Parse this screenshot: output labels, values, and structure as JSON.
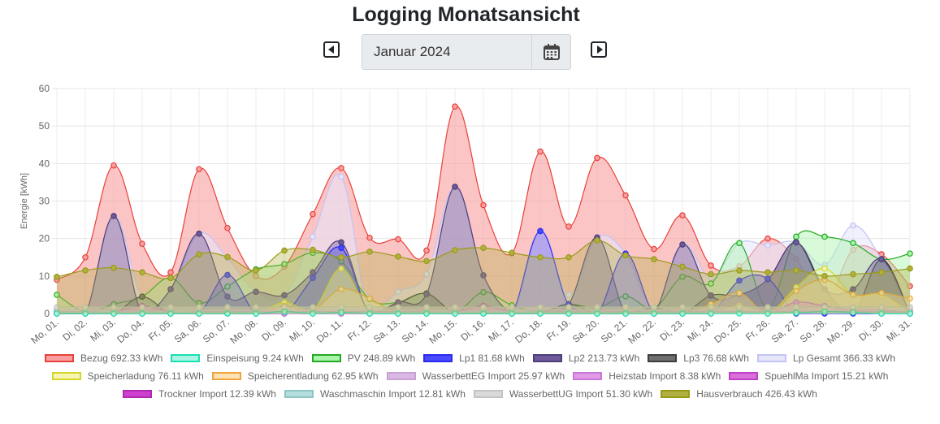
{
  "header": {
    "title": "Logging Monatsansicht"
  },
  "date_picker": {
    "value": "Januar 2024",
    "prev_icon": "chevron-left-icon",
    "next_icon": "chevron-right-icon",
    "calendar_icon": "calendar-icon"
  },
  "chart_data": {
    "type": "area",
    "ylabel": "Energie [kWh]",
    "xlabel": "",
    "ylim": [
      0,
      60
    ],
    "yticks": [
      0,
      10,
      20,
      30,
      40,
      50,
      60
    ],
    "grid": true,
    "legend_position": "bottom",
    "categories": [
      "Mo, 01.",
      "Di, 02.",
      "Mi, 03.",
      "Do, 04.",
      "Fr, 05.",
      "Sa, 06.",
      "So, 07.",
      "Mo, 08.",
      "Di, 09.",
      "Mi, 10.",
      "Do, 11.",
      "Fr, 12.",
      "Sa, 13.",
      "So, 14.",
      "Mo, 15.",
      "Di, 16.",
      "Mi, 17.",
      "Do, 18.",
      "Fr, 19.",
      "Sa, 20.",
      "So, 21.",
      "Mo, 22.",
      "Di, 23.",
      "Mi, 24.",
      "Do, 25.",
      "Fr, 26.",
      "Sa, 27.",
      "So, 28.",
      "Mo, 29.",
      "Di, 30.",
      "Mi, 31."
    ],
    "series": [
      {
        "name": "Bezug",
        "label": "Bezug 692.33 kWh",
        "stroke": "#e8413c",
        "fill": "#f99f9f",
        "values": [
          9,
          15,
          39.5,
          18.6,
          11,
          38.5,
          22.8,
          10,
          12.5,
          26.5,
          38.8,
          20.2,
          19.8,
          16.8,
          55.2,
          28.9,
          16.1,
          43.2,
          23.2,
          41.5,
          31.5,
          17.2,
          26.2,
          12.8,
          12.6,
          20,
          14.5,
          3.2,
          17,
          15.8,
          7.3
        ]
      },
      {
        "name": "Einspeisung",
        "label": "Einspeisung 9.24 kWh",
        "stroke": "#1adfb0",
        "fill": "#a8f5e6",
        "values": [
          0,
          0,
          0,
          0,
          0,
          0,
          0,
          0,
          0.5,
          0,
          0.3,
          0,
          0,
          0,
          0,
          0,
          0,
          0,
          0,
          0,
          0,
          0,
          0,
          0,
          0,
          0,
          0.2,
          0.5,
          0.3,
          0,
          0
        ]
      },
      {
        "name": "PV",
        "label": "PV 248.89 kWh",
        "stroke": "#22a922",
        "fill": "#aaf5aa",
        "values": [
          5,
          0.5,
          2.5,
          4.5,
          9.5,
          2.8,
          7.2,
          11.8,
          13.2,
          16.2,
          13.9,
          3.8,
          3,
          5.4,
          0.5,
          5.7,
          2.2,
          0.5,
          2.5,
          1.5,
          4.6,
          1.5,
          9.8,
          8,
          18.8,
          1.5,
          20.5,
          20.5,
          18.8,
          14.5,
          16
        ]
      },
      {
        "name": "Lp1",
        "label": "Lp1 81.68 kWh",
        "stroke": "#2a2af0",
        "fill": "#4a4aff",
        "values": [
          0,
          0,
          0,
          0,
          0,
          0,
          10.3,
          0,
          0,
          9.5,
          17.5,
          0,
          0,
          0,
          0,
          0,
          0,
          22,
          2.3,
          0,
          16,
          0,
          0,
          0,
          8.8,
          9.3,
          0,
          0,
          0,
          0,
          0
        ]
      },
      {
        "name": "Lp2",
        "label": "Lp2 213.73 kWh",
        "stroke": "#4e3e7a",
        "fill": "#6e5a9a",
        "values": [
          0,
          0,
          26,
          0,
          6.5,
          21.3,
          4.5,
          5.8,
          4.9,
          11,
          19,
          0,
          3,
          5.2,
          33.8,
          10.2,
          0,
          0,
          2.5,
          20.3,
          0,
          0,
          18.4,
          4.8,
          5,
          9.1,
          19,
          6.5,
          6.5,
          14.5,
          0
        ]
      },
      {
        "name": "Lp3",
        "label": "Lp3 76.68 kWh",
        "stroke": "#3d3d3d",
        "fill": "#6e6e6e",
        "values": [
          0,
          0,
          0,
          4.5,
          0,
          0,
          0,
          0,
          0,
          0,
          0,
          0,
          2.8,
          5.3,
          0,
          0,
          0,
          0,
          2.5,
          0,
          0,
          1.5,
          0,
          4.8,
          5,
          9.1,
          19,
          6.5,
          0,
          14.5,
          0
        ]
      },
      {
        "name": "Lp Gesamt",
        "label": "Lp Gesamt 366.33 kWh",
        "stroke": "#c3c3f5",
        "fill": "#e6e6fb",
        "values": [
          0,
          0,
          26,
          4.5,
          6.5,
          21.3,
          14.8,
          5.8,
          4.9,
          20.5,
          36.5,
          0,
          5.8,
          10.5,
          33.8,
          10.2,
          0,
          22,
          5,
          20.3,
          16,
          1.5,
          18.4,
          9.6,
          18.8,
          18.2,
          19,
          13,
          23.5,
          14.5,
          0
        ]
      },
      {
        "name": "Speicherladung",
        "label": "Speicherladung 76.11 kWh",
        "stroke": "#d5d52a",
        "fill": "#f5f5b4",
        "values": [
          0,
          0,
          0,
          0,
          0,
          0,
          0,
          0,
          3,
          1,
          12,
          0,
          0,
          0,
          0,
          0,
          0,
          0,
          0,
          0,
          0,
          0,
          0,
          0,
          2,
          0,
          7,
          12,
          5,
          5,
          0
        ]
      },
      {
        "name": "Speicherentladung",
        "label": "Speicherentladung 62.95 kWh",
        "stroke": "#f0a53c",
        "fill": "#fde2b8",
        "values": [
          0,
          0,
          0,
          0,
          0,
          0,
          0,
          0,
          2,
          1,
          6.5,
          4,
          0,
          0,
          0,
          0,
          0,
          0,
          0,
          0,
          0,
          0,
          0,
          2.5,
          5.5,
          0,
          6,
          9,
          5,
          5.5,
          4
        ]
      },
      {
        "name": "WasserbettEG Import",
        "label": "WasserbettEG Import 25.97 kWh",
        "stroke": "#c8a2d4",
        "fill": "#dcb8e4",
        "values": [
          1,
          1,
          1,
          1,
          1,
          1,
          1,
          1,
          1,
          1,
          1,
          1,
          1,
          1,
          1,
          1,
          1,
          1,
          1,
          1,
          1,
          1,
          1,
          1,
          1,
          1,
          1,
          1,
          1,
          1,
          1
        ]
      },
      {
        "name": "Heizstab Import",
        "label": "Heizstab Import 8.38 kWh",
        "stroke": "#c878d8",
        "fill": "#e09ae6",
        "values": [
          0,
          0,
          0,
          0,
          0,
          0,
          0,
          0,
          0,
          0,
          0,
          0,
          0,
          0,
          0,
          0,
          0,
          0,
          0,
          0,
          0,
          0,
          0,
          0,
          0.5,
          0,
          3,
          2,
          1,
          1,
          0
        ]
      },
      {
        "name": "SpuehlMa Import",
        "label": "SpuehlMa Import 15.21 kWh",
        "stroke": "#c040c8",
        "fill": "#da70da",
        "values": [
          0.5,
          0.5,
          0.5,
          2,
          0.5,
          0.5,
          0.5,
          0.5,
          0.5,
          0.5,
          0.5,
          0.5,
          0.5,
          0.5,
          0.5,
          2,
          0.5,
          0.5,
          0.5,
          0.5,
          0.5,
          0.5,
          0.5,
          0.5,
          0.5,
          0.5,
          0.5,
          0.5,
          0.5,
          0.5,
          0.5
        ]
      },
      {
        "name": "Trockner Import",
        "label": "Trockner Import 12.39 kWh",
        "stroke": "#b02ab0",
        "fill": "#d040d0",
        "values": [
          0.4,
          0.4,
          0.4,
          0.4,
          0.4,
          0.4,
          0.4,
          0.4,
          0.4,
          0.4,
          0.4,
          0.4,
          0.4,
          0.4,
          0.4,
          0.4,
          0.4,
          0.4,
          0.4,
          0.4,
          0.4,
          0.4,
          0.4,
          0.4,
          0.4,
          0.4,
          0.4,
          0.4,
          0.4,
          0.4,
          0.4
        ]
      },
      {
        "name": "Waschmaschin Import",
        "label": "Waschmaschin Import 12.81 kWh",
        "stroke": "#8fc4c4",
        "fill": "#b4dede",
        "values": [
          0.4,
          0.4,
          0.4,
          0.4,
          0.4,
          0.4,
          0.4,
          0.4,
          0.4,
          0.4,
          0.4,
          0.4,
          0.4,
          0.4,
          0.4,
          0.4,
          0.4,
          0.4,
          0.4,
          0.4,
          0.4,
          0.4,
          0.4,
          0.4,
          0.4,
          0.4,
          0.4,
          0.4,
          0.4,
          0.4,
          0.4
        ]
      },
      {
        "name": "WasserbettUG Import",
        "label": "WasserbettUG Import 51.30 kWh",
        "stroke": "#c4c4c4",
        "fill": "#dadada",
        "values": [
          1.7,
          1.7,
          1.7,
          1.7,
          1.7,
          1.7,
          1.7,
          1.7,
          1.7,
          1.7,
          1.7,
          1.7,
          1.7,
          1.7,
          1.7,
          1.7,
          1.7,
          1.7,
          1.7,
          1.7,
          1.7,
          1.7,
          1.7,
          1.7,
          1.7,
          1.7,
          1.7,
          1.7,
          1.7,
          1.7,
          1.7
        ]
      },
      {
        "name": "Hausverbrauch",
        "label": "Hausverbrauch 426.43 kWh",
        "stroke": "#9a9a18",
        "fill": "#b0b040",
        "values": [
          9.8,
          11.5,
          12.2,
          11,
          9.5,
          15.8,
          15.1,
          11.5,
          16.8,
          17,
          15,
          16.5,
          15.2,
          14,
          16.9,
          17.5,
          16.2,
          15,
          15,
          19.5,
          15.5,
          14.5,
          12.5,
          10.5,
          11.5,
          11,
          11.5,
          10,
          10.5,
          11,
          12
        ]
      }
    ],
    "legend_rows": [
      [
        0,
        1,
        2,
        3,
        4,
        5,
        6
      ],
      [
        7,
        8,
        9,
        10,
        11
      ],
      [
        12,
        13,
        14,
        15
      ]
    ]
  }
}
